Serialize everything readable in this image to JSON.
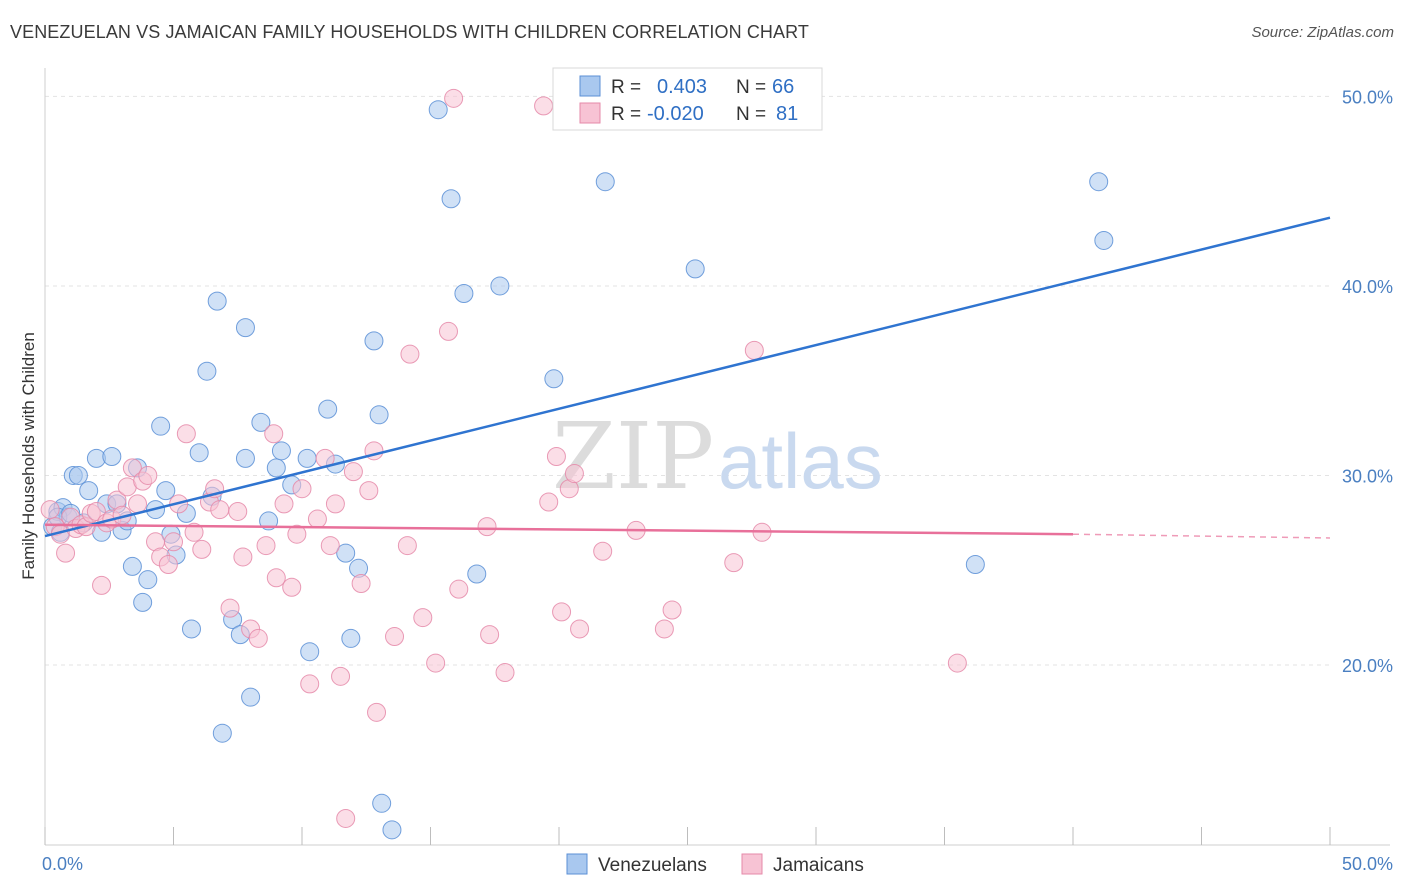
{
  "chart_data": {
    "type": "scatter",
    "title": "VENEZUELAN VS JAMAICAN FAMILY HOUSEHOLDS WITH CHILDREN CORRELATION CHART",
    "source": "Source: ZipAtlas.com",
    "xlabel": "",
    "ylabel": "Family Households with Children",
    "xlim": [
      0,
      50
    ],
    "ylim": [
      10.5,
      51.5
    ],
    "x_tick_labels": [
      {
        "value": 0,
        "label": "0.0%"
      },
      {
        "value": 50,
        "label": "50.0%"
      }
    ],
    "y_tick_labels": [
      {
        "value": 20,
        "label": "20.0%"
      },
      {
        "value": 30,
        "label": "30.0%"
      },
      {
        "value": 40,
        "label": "40.0%"
      },
      {
        "value": 50,
        "label": "50.0%"
      }
    ],
    "x_minor_ticks": [
      0,
      5,
      10,
      15,
      20,
      25,
      30,
      35,
      40,
      45,
      50
    ],
    "watermark": {
      "zip": "ZIP",
      "atlas": "atlas"
    },
    "legend": {
      "placement": "top-center",
      "rows": [
        {
          "series": "Venezuelans",
          "r_label": "R =",
          "r_value": "0.403",
          "n_label": "N =",
          "n_value": "66"
        },
        {
          "series": "Jamaicans",
          "r_label": "R =",
          "r_value": "-0.020",
          "n_label": "N =",
          "n_value": "81"
        }
      ]
    },
    "series": [
      {
        "name": "Venezuelans",
        "fill": "#a9c8ef",
        "stroke": "#5b8fd6",
        "line_color": "#2f74d0",
        "trend": {
          "x0": 0,
          "y0": 26.8,
          "x1": 50,
          "y1": 43.6,
          "dashed_from": null
        },
        "points": [
          [
            0.3,
            27.3
          ],
          [
            0.5,
            28.1
          ],
          [
            0.7,
            28.3
          ],
          [
            0.9,
            27.8
          ],
          [
            0.6,
            27.0
          ],
          [
            1.1,
            30.0
          ],
          [
            1.3,
            30.0
          ],
          [
            1.5,
            27.5
          ],
          [
            1.7,
            29.2
          ],
          [
            2.0,
            30.9
          ],
          [
            2.2,
            27.0
          ],
          [
            2.4,
            28.5
          ],
          [
            2.6,
            31.0
          ],
          [
            2.8,
            28.5
          ],
          [
            3.0,
            27.1
          ],
          [
            3.2,
            27.6
          ],
          [
            3.4,
            25.2
          ],
          [
            3.6,
            30.4
          ],
          [
            3.8,
            23.3
          ],
          [
            4.0,
            24.5
          ],
          [
            4.3,
            28.2
          ],
          [
            4.5,
            32.6
          ],
          [
            4.7,
            29.2
          ],
          [
            4.9,
            26.9
          ],
          [
            5.1,
            25.8
          ],
          [
            5.5,
            28.0
          ],
          [
            5.7,
            21.9
          ],
          [
            6.0,
            31.2
          ],
          [
            6.3,
            35.5
          ],
          [
            6.5,
            28.9
          ],
          [
            6.7,
            39.2
          ],
          [
            6.9,
            16.4
          ],
          [
            7.3,
            22.4
          ],
          [
            7.6,
            21.6
          ],
          [
            7.8,
            37.8
          ],
          [
            7.8,
            30.9
          ],
          [
            8.0,
            18.3
          ],
          [
            8.4,
            32.8
          ],
          [
            8.7,
            27.6
          ],
          [
            9.0,
            30.4
          ],
          [
            9.2,
            31.3
          ],
          [
            9.6,
            29.5
          ],
          [
            10.2,
            30.9
          ],
          [
            10.3,
            20.7
          ],
          [
            11.0,
            33.5
          ],
          [
            11.3,
            30.6
          ],
          [
            11.7,
            25.9
          ],
          [
            11.9,
            21.4
          ],
          [
            12.2,
            25.1
          ],
          [
            12.8,
            37.1
          ],
          [
            13.0,
            33.2
          ],
          [
            13.1,
            12.7
          ],
          [
            13.5,
            11.3
          ],
          [
            15.3,
            49.3
          ],
          [
            15.8,
            44.6
          ],
          [
            16.3,
            39.6
          ],
          [
            16.8,
            24.8
          ],
          [
            17.7,
            40.0
          ],
          [
            19.8,
            35.1
          ],
          [
            21.8,
            45.5
          ],
          [
            25.3,
            40.9
          ],
          [
            36.2,
            25.3
          ],
          [
            41.0,
            45.5
          ],
          [
            41.2,
            42.4
          ],
          [
            0.5,
            27.8
          ],
          [
            1.0,
            28.0
          ]
        ]
      },
      {
        "name": "Jamaicans",
        "fill": "#f7c3d4",
        "stroke": "#e58aa9",
        "line_color": "#e8709a",
        "trend": {
          "x0": 0,
          "y0": 27.4,
          "x1": 40,
          "y1": 26.9,
          "dashed_from": 40,
          "dash_end": 50,
          "dash_end_y": 26.7
        },
        "points": [
          [
            0.2,
            28.2
          ],
          [
            0.4,
            27.3
          ],
          [
            0.6,
            26.9
          ],
          [
            0.8,
            25.9
          ],
          [
            1.0,
            27.8
          ],
          [
            1.2,
            27.2
          ],
          [
            1.4,
            27.4
          ],
          [
            1.6,
            27.3
          ],
          [
            1.8,
            28.0
          ],
          [
            2.0,
            28.1
          ],
          [
            2.2,
            24.2
          ],
          [
            2.4,
            27.5
          ],
          [
            2.6,
            27.7
          ],
          [
            2.8,
            28.7
          ],
          [
            3.0,
            27.9
          ],
          [
            3.2,
            29.4
          ],
          [
            3.4,
            30.4
          ],
          [
            3.6,
            28.5
          ],
          [
            3.8,
            29.7
          ],
          [
            4.0,
            30.0
          ],
          [
            4.3,
            26.5
          ],
          [
            4.5,
            25.7
          ],
          [
            4.8,
            25.3
          ],
          [
            5.0,
            26.5
          ],
          [
            5.2,
            28.5
          ],
          [
            5.5,
            32.2
          ],
          [
            5.8,
            27.0
          ],
          [
            6.1,
            26.1
          ],
          [
            6.4,
            28.6
          ],
          [
            6.6,
            29.3
          ],
          [
            6.8,
            28.2
          ],
          [
            7.2,
            23.0
          ],
          [
            7.5,
            28.1
          ],
          [
            7.7,
            25.7
          ],
          [
            8.0,
            21.9
          ],
          [
            8.3,
            21.4
          ],
          [
            8.6,
            26.3
          ],
          [
            8.9,
            32.2
          ],
          [
            9.0,
            24.6
          ],
          [
            9.3,
            28.5
          ],
          [
            9.6,
            24.1
          ],
          [
            9.8,
            26.9
          ],
          [
            10.0,
            29.3
          ],
          [
            10.3,
            19.0
          ],
          [
            10.6,
            27.7
          ],
          [
            10.9,
            30.9
          ],
          [
            11.1,
            26.3
          ],
          [
            11.3,
            28.5
          ],
          [
            11.5,
            19.4
          ],
          [
            11.7,
            11.9
          ],
          [
            12.0,
            30.2
          ],
          [
            12.3,
            24.3
          ],
          [
            12.6,
            29.2
          ],
          [
            12.9,
            17.5
          ],
          [
            13.6,
            21.5
          ],
          [
            14.1,
            26.3
          ],
          [
            14.2,
            36.4
          ],
          [
            14.7,
            22.5
          ],
          [
            15.2,
            20.1
          ],
          [
            15.7,
            37.6
          ],
          [
            15.9,
            49.9
          ],
          [
            16.1,
            24.0
          ],
          [
            17.2,
            27.3
          ],
          [
            17.3,
            21.6
          ],
          [
            17.9,
            19.6
          ],
          [
            19.4,
            49.5
          ],
          [
            19.6,
            28.6
          ],
          [
            19.9,
            31.0
          ],
          [
            20.1,
            22.8
          ],
          [
            20.4,
            29.3
          ],
          [
            20.6,
            30.1
          ],
          [
            20.8,
            21.9
          ],
          [
            21.7,
            26.0
          ],
          [
            23.0,
            27.1
          ],
          [
            24.1,
            21.9
          ],
          [
            24.4,
            22.9
          ],
          [
            26.8,
            25.4
          ],
          [
            27.6,
            36.6
          ],
          [
            27.9,
            27.0
          ],
          [
            35.5,
            20.1
          ],
          [
            12.8,
            31.3
          ]
        ]
      }
    ]
  },
  "bottom_legend": {
    "items": [
      {
        "label": "Venezuelans"
      },
      {
        "label": "Jamaicans"
      }
    ]
  }
}
